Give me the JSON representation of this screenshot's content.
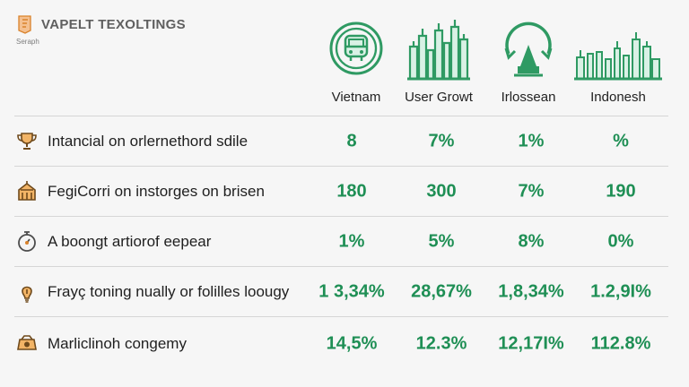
{
  "brand": {
    "title": "VAPELT TEXOLTINGS",
    "subtitle": "Seraph"
  },
  "headers": [
    {
      "label": "Vietnam",
      "icon": "bus-icon"
    },
    {
      "label": "User Growt",
      "icon": "city-skyline-icon"
    },
    {
      "label": "Irlossean",
      "icon": "temple-cycle-icon"
    },
    {
      "label": "Indonesh",
      "icon": "city-landmarks-icon"
    }
  ],
  "rows": [
    {
      "label": "Intancial on orlernethord sdile",
      "icon": "trophy-icon",
      "values": [
        "8",
        "7%",
        "1%",
        "%"
      ]
    },
    {
      "label": "FegiCorri on instorges on brisen",
      "icon": "building-icon",
      "values": [
        "180",
        "300",
        "7%",
        "190"
      ]
    },
    {
      "label": "A boongt artiorof eepear",
      "icon": "stopwatch-icon",
      "values": [
        "1%",
        "5%",
        "8%",
        "0%"
      ]
    },
    {
      "label": "Frayç toning nually or folilles loougy",
      "icon": "lightbulb-icon",
      "values": [
        "1 3,34%",
        "28,67%",
        "1,8,34%",
        "1.2,9I%"
      ]
    },
    {
      "label": "Marliclinoh congemy",
      "icon": "badge-icon",
      "values": [
        "14,5%",
        "12.3%",
        "12,17I%",
        "112.8%"
      ]
    }
  ],
  "chart_data": {
    "type": "table",
    "title": "VAPELT TEXOLTINGS",
    "columns": [
      "Vietnam",
      "User Growt",
      "Irlossean",
      "Indonesh"
    ],
    "rows": [
      {
        "name": "Intancial on orlernethord sdile",
        "values": [
          "8",
          "7%",
          "1%",
          "%"
        ]
      },
      {
        "name": "FegiCorri on instorges on brisen",
        "values": [
          "180",
          "300",
          "7%",
          "190"
        ]
      },
      {
        "name": "A boongt artiorof eepear",
        "values": [
          "1%",
          "5%",
          "8%",
          "0%"
        ]
      },
      {
        "name": "Frayç toning nually or folilles loougy",
        "values": [
          "1 3,34%",
          "28,67%",
          "1,8,34%",
          "1.2,9I%"
        ]
      },
      {
        "name": "Marliclinoh congemy",
        "values": [
          "14,5%",
          "12.3%",
          "12,17I%",
          "112.8%"
        ]
      }
    ]
  },
  "colors": {
    "accent": "#2f9a63",
    "value_text": "#1f8f55",
    "icon_orange": "#d9822b",
    "divider": "#d6d6d6"
  }
}
